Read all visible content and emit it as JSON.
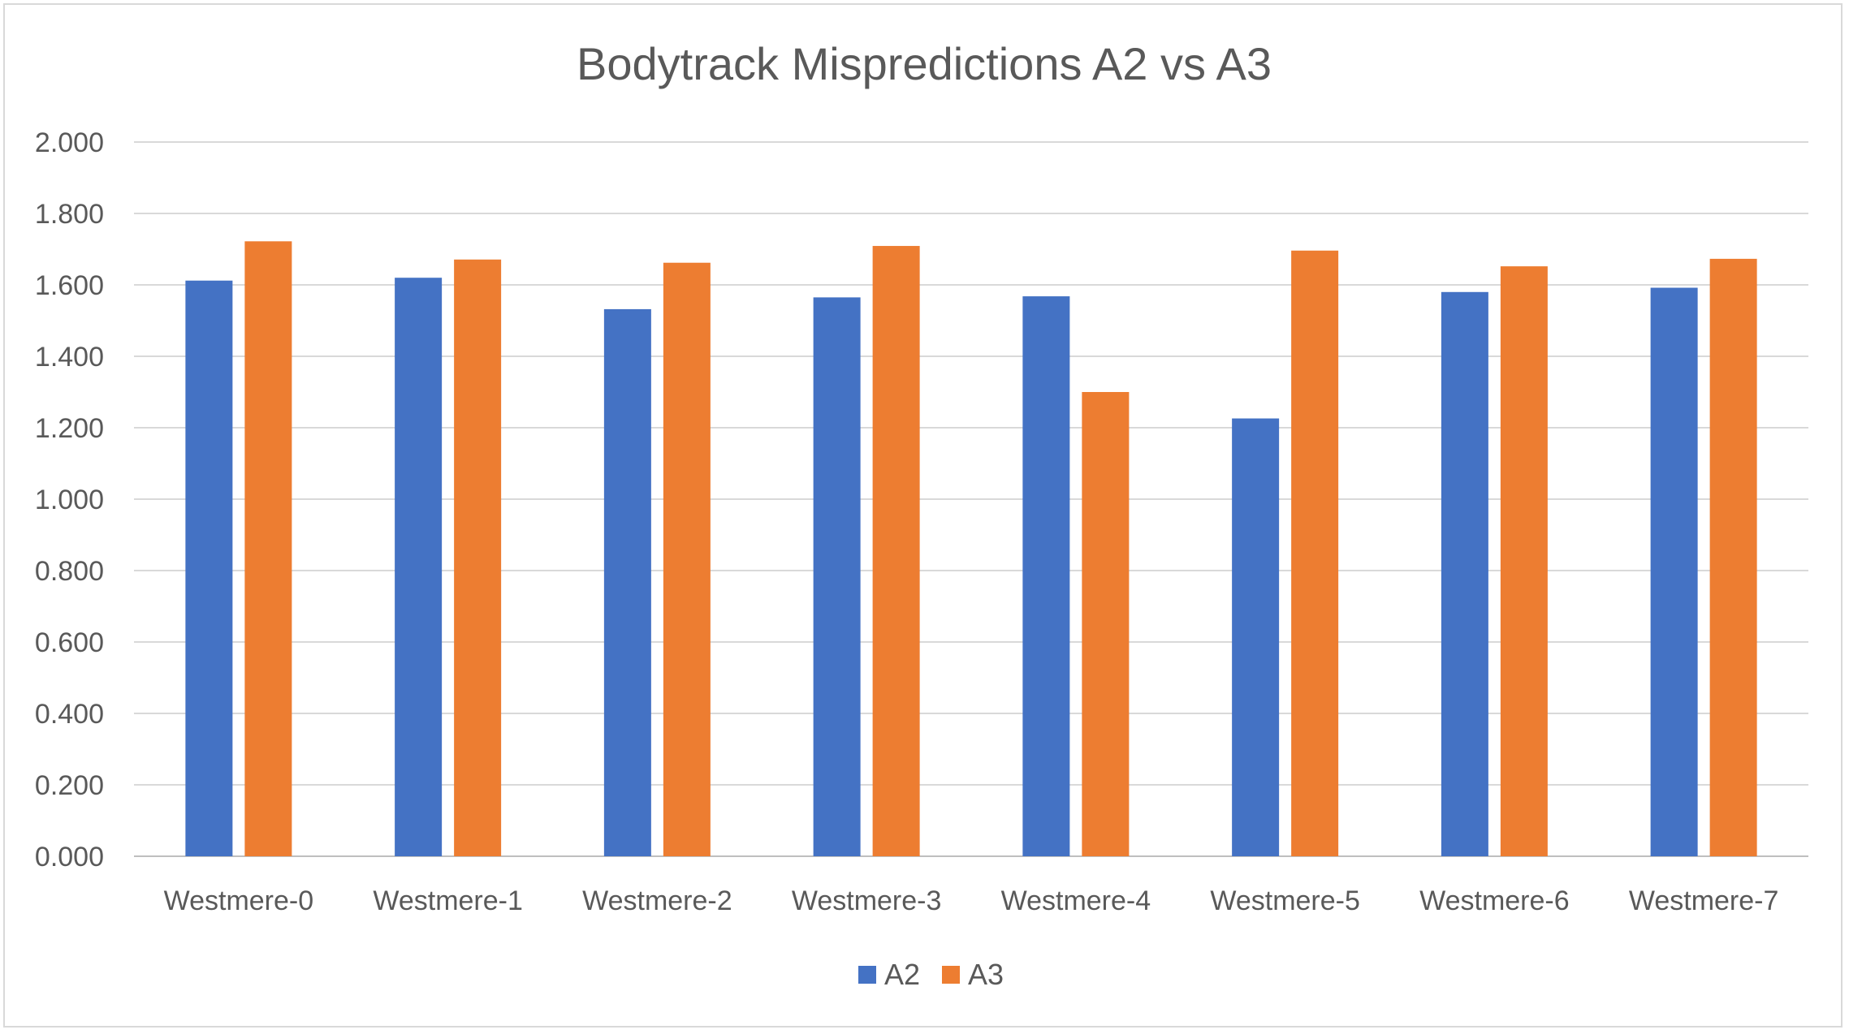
{
  "chart_data": {
    "type": "bar",
    "title": "Bodytrack Mispredictions A2 vs A3",
    "xlabel": "",
    "ylabel": "",
    "categories": [
      "Westmere-0",
      "Westmere-1",
      "Westmere-2",
      "Westmere-3",
      "Westmere-4",
      "Westmere-5",
      "Westmere-6",
      "Westmere-7"
    ],
    "series": [
      {
        "name": "A2",
        "color": "#4472c4",
        "values": [
          1.612,
          1.62,
          1.532,
          1.565,
          1.568,
          1.226,
          1.58,
          1.592
        ]
      },
      {
        "name": "A3",
        "color": "#ed7d31",
        "values": [
          1.722,
          1.671,
          1.662,
          1.709,
          1.3,
          1.696,
          1.652,
          1.673
        ]
      }
    ],
    "ylim": [
      0,
      2.0
    ],
    "yticks": [
      "0.000",
      "0.200",
      "0.400",
      "0.600",
      "0.800",
      "1.000",
      "1.200",
      "1.400",
      "1.600",
      "1.800",
      "2.000"
    ],
    "grid": true,
    "legend_position": "bottom"
  }
}
